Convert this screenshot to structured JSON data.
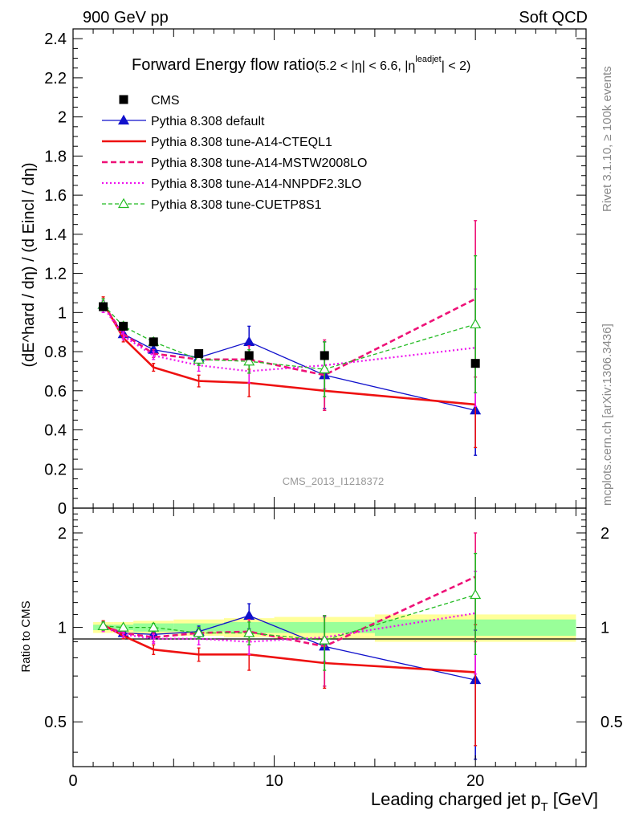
{
  "header": {
    "left": "900 GeV pp",
    "right": "Soft QCD"
  },
  "side_labels": {
    "rivet": "Rivet 3.1.10, ≥ 100k events",
    "mcplots": "mcplots.cern.ch [arXiv:1306.3436]"
  },
  "colors": {
    "cms": "#000000",
    "default": "#1111cc",
    "cteql1": "#ee1111",
    "mstw": "#ee1177",
    "nnpdf": "#ee11ee",
    "cuetp": "#22bb22",
    "band_outer": "#ffff99",
    "band_inner": "#99ff99"
  },
  "chart_data": [
    {
      "type": "line",
      "title": "Forward Energy flow ratio",
      "title_suffix": "(5.2 < |η| < 6.6, |η",
      "title_sup": "leadjet",
      "title_end": "| < 2)",
      "watermark": "CMS_2013_I1218372",
      "ylabel": "(dE^hard / dη) / (d Eincl / dη)",
      "xlim": [
        0,
        25.5
      ],
      "ylim": [
        0,
        2.45
      ],
      "yticks": [
        "0",
        "0.2",
        "0.4",
        "0.6",
        "0.8",
        "1",
        "1.2",
        "1.4",
        "1.6",
        "1.8",
        "2",
        "2.2",
        "2.4"
      ],
      "x": [
        1.5,
        2.5,
        4.0,
        6.25,
        8.75,
        12.5,
        20.0
      ],
      "legend": {
        "position": "top-left",
        "entries": [
          "CMS",
          "Pythia 8.308 default",
          "Pythia 8.308 tune-A14-CTEQL1",
          "Pythia 8.308 tune-A14-MSTW2008LO",
          "Pythia 8.308 tune-A14-NNPDF2.3LO",
          "Pythia 8.308 tune-CUETP8S1"
        ]
      },
      "series": [
        {
          "name": "CMS",
          "values": [
            1.03,
            0.93,
            0.85,
            0.79,
            0.78,
            0.78,
            0.74
          ],
          "errors": [
            0.02,
            0.02,
            0.02,
            0.02,
            0.02,
            0.02,
            0.02
          ]
        },
        {
          "name": "Pythia 8.308 default",
          "values": [
            1.04,
            0.89,
            0.81,
            0.77,
            0.85,
            0.68,
            0.5
          ],
          "errors": [
            0.03,
            0.02,
            0.02,
            0.03,
            0.08,
            0.17,
            0.23
          ]
        },
        {
          "name": "Pythia 8.308 tune-A14-CTEQL1",
          "values": [
            1.05,
            0.87,
            0.72,
            0.65,
            0.64,
            0.6,
            0.53
          ],
          "errors": [
            0.03,
            0.02,
            0.02,
            0.03,
            0.07,
            0.1,
            0.22
          ]
        },
        {
          "name": "Pythia 8.308 tune-A14-MSTW2008LO",
          "values": [
            1.04,
            0.89,
            0.79,
            0.76,
            0.76,
            0.68,
            1.07
          ],
          "errors": [
            0.03,
            0.02,
            0.02,
            0.03,
            0.07,
            0.18,
            0.4
          ]
        },
        {
          "name": "Pythia 8.308 tune-A14-NNPDF2.3LO",
          "values": [
            1.03,
            0.88,
            0.78,
            0.73,
            0.7,
            0.73,
            0.82
          ],
          "errors": [
            0.03,
            0.02,
            0.02,
            0.03,
            0.06,
            0.12,
            0.3
          ]
        },
        {
          "name": "Pythia 8.308 tune-CUETP8S1",
          "values": [
            1.04,
            0.93,
            0.85,
            0.76,
            0.75,
            0.71,
            0.94
          ],
          "errors": [
            0.03,
            0.02,
            0.02,
            0.03,
            0.06,
            0.14,
            0.35
          ]
        }
      ]
    },
    {
      "type": "line",
      "ylabel": "Ratio to CMS",
      "xlabel": "Leading charged jet p",
      "xlabel_sub": "T",
      "xlabel_end": " [GeV]",
      "xlim": [
        0,
        25.5
      ],
      "ylim": [
        0.36,
        2.4
      ],
      "yscale": "log",
      "xticks": [
        "0",
        "10",
        "20"
      ],
      "yticks": [
        "0.5",
        "1",
        "2"
      ],
      "x": [
        1.5,
        2.5,
        4.0,
        6.25,
        8.75,
        12.5,
        20.0
      ],
      "bands": {
        "edges": [
          1.0,
          2.0,
          3.0,
          5.0,
          7.5,
          10.0,
          15.0,
          25.0
        ],
        "outer": [
          0.04,
          0.04,
          0.05,
          0.06,
          0.07,
          0.08,
          0.1
        ],
        "inner": [
          0.02,
          0.02,
          0.03,
          0.03,
          0.04,
          0.04,
          0.06
        ]
      },
      "series": [
        {
          "name": "Pythia 8.308 default",
          "values": [
            1.01,
            0.96,
            0.95,
            0.97,
            1.09,
            0.87,
            0.68
          ],
          "errors": [
            0.03,
            0.02,
            0.03,
            0.04,
            0.1,
            0.22,
            0.3
          ]
        },
        {
          "name": "Pythia 8.308 tune-A14-CTEQL1",
          "values": [
            1.02,
            0.94,
            0.85,
            0.82,
            0.82,
            0.77,
            0.72
          ],
          "errors": [
            0.03,
            0.02,
            0.03,
            0.04,
            0.09,
            0.13,
            0.3
          ]
        },
        {
          "name": "Pythia 8.308 tune-A14-MSTW2008LO",
          "values": [
            1.01,
            0.96,
            0.93,
            0.96,
            0.97,
            0.87,
            1.45
          ],
          "errors": [
            0.03,
            0.02,
            0.03,
            0.04,
            0.09,
            0.22,
            0.55
          ]
        },
        {
          "name": "Pythia 8.308 tune-A14-NNPDF2.3LO",
          "values": [
            1.0,
            0.95,
            0.92,
            0.92,
            0.9,
            0.93,
            1.11
          ],
          "errors": [
            0.03,
            0.02,
            0.03,
            0.04,
            0.08,
            0.15,
            0.4
          ]
        },
        {
          "name": "Pythia 8.308 tune-CUETP8S1",
          "values": [
            1.01,
            1.0,
            1.0,
            0.96,
            0.96,
            0.91,
            1.27
          ],
          "errors": [
            0.03,
            0.02,
            0.03,
            0.04,
            0.08,
            0.18,
            0.45
          ]
        }
      ]
    }
  ]
}
